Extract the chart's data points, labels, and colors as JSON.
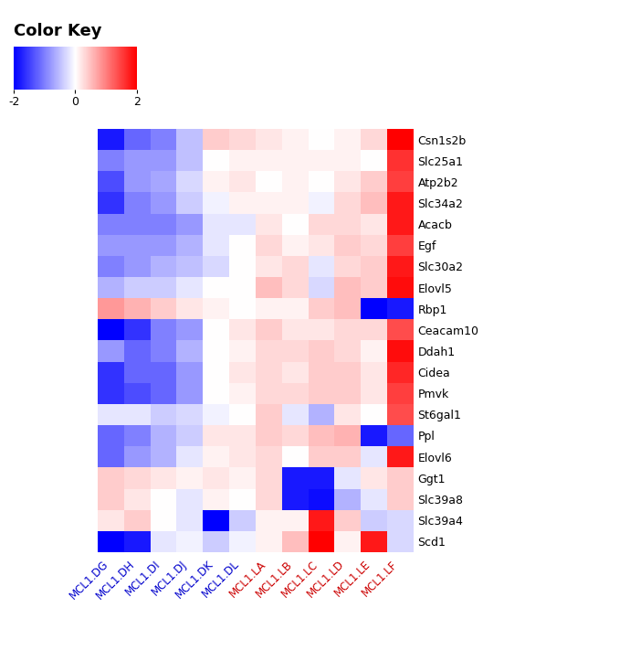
{
  "genes": [
    "Csn1s2b",
    "Slc25a1",
    "Atp2b2",
    "Slc34a2",
    "Acacb",
    "Egf",
    "Slc30a2",
    "Elovl5",
    "Rbp1",
    "Ceacam10",
    "Ddah1",
    "Cidea",
    "Pmvk",
    "St6gal1",
    "Ppl",
    "Elovl6",
    "Ggt1",
    "Slc39a8",
    "Slc39a4",
    "Scd1"
  ],
  "samples": [
    "MCL1.DG",
    "MCL1.DH",
    "MCL1.DI",
    "MCL1.DJ",
    "MCL1.DK",
    "MCL1.DL",
    "MCL1.LA",
    "MCL1.LB",
    "MCL1.LC",
    "MCL1.LD",
    "MCL1.LE",
    "MCL1.LF"
  ],
  "matrix": [
    [
      -1.8,
      -1.2,
      -1.0,
      -0.5,
      0.4,
      0.3,
      0.2,
      0.1,
      0.0,
      0.1,
      0.3,
      2.0
    ],
    [
      -1.0,
      -0.8,
      -0.8,
      -0.5,
      0.0,
      0.1,
      0.1,
      0.1,
      0.1,
      0.1,
      0.0,
      1.6
    ],
    [
      -1.4,
      -0.8,
      -0.7,
      -0.3,
      0.1,
      0.2,
      0.0,
      0.1,
      0.0,
      0.2,
      0.4,
      1.5
    ],
    [
      -1.6,
      -1.0,
      -0.8,
      -0.4,
      -0.1,
      0.1,
      0.1,
      0.1,
      -0.1,
      0.3,
      0.5,
      1.8
    ],
    [
      -1.0,
      -1.0,
      -1.0,
      -0.8,
      -0.2,
      -0.2,
      0.2,
      0.0,
      0.3,
      0.3,
      0.2,
      1.8
    ],
    [
      -0.8,
      -0.8,
      -0.8,
      -0.6,
      -0.2,
      0.0,
      0.3,
      0.1,
      0.2,
      0.4,
      0.3,
      1.5
    ],
    [
      -1.0,
      -0.8,
      -0.6,
      -0.5,
      -0.3,
      0.0,
      0.2,
      0.3,
      -0.2,
      0.3,
      0.4,
      1.8
    ],
    [
      -0.6,
      -0.4,
      -0.4,
      -0.2,
      0.0,
      0.0,
      0.5,
      0.3,
      -0.3,
      0.5,
      0.4,
      1.9
    ],
    [
      0.8,
      0.6,
      0.4,
      0.2,
      0.1,
      0.0,
      0.1,
      0.1,
      0.4,
      0.5,
      -2.0,
      -1.8
    ],
    [
      -2.0,
      -1.6,
      -1.0,
      -0.8,
      0.0,
      0.2,
      0.4,
      0.2,
      0.2,
      0.3,
      0.3,
      1.4
    ],
    [
      -0.8,
      -1.2,
      -1.0,
      -0.6,
      0.0,
      0.1,
      0.3,
      0.3,
      0.4,
      0.3,
      0.1,
      1.9
    ],
    [
      -1.6,
      -1.2,
      -1.2,
      -0.8,
      0.0,
      0.2,
      0.3,
      0.2,
      0.4,
      0.4,
      0.2,
      1.7
    ],
    [
      -1.6,
      -1.4,
      -1.2,
      -0.8,
      0.0,
      0.1,
      0.3,
      0.3,
      0.4,
      0.4,
      0.2,
      1.5
    ],
    [
      -0.2,
      -0.2,
      -0.4,
      -0.3,
      -0.1,
      0.0,
      0.4,
      -0.2,
      -0.6,
      0.2,
      0.0,
      1.4
    ],
    [
      -1.2,
      -1.0,
      -0.6,
      -0.4,
      0.2,
      0.2,
      0.4,
      0.3,
      0.5,
      0.6,
      -1.8,
      -1.2
    ],
    [
      -1.2,
      -0.8,
      -0.6,
      -0.2,
      0.1,
      0.2,
      0.3,
      0.0,
      0.4,
      0.4,
      -0.2,
      1.8
    ],
    [
      0.4,
      0.3,
      0.2,
      0.1,
      0.2,
      0.1,
      0.3,
      -1.8,
      -1.8,
      -0.2,
      0.2,
      0.4
    ],
    [
      0.4,
      0.2,
      0.0,
      -0.2,
      0.1,
      0.0,
      0.3,
      -1.8,
      -1.9,
      -0.6,
      -0.2,
      0.4
    ],
    [
      0.2,
      0.4,
      0.0,
      -0.2,
      -2.0,
      -0.4,
      0.1,
      0.1,
      1.8,
      0.4,
      -0.4,
      -0.3
    ],
    [
      -2.0,
      -1.8,
      -0.2,
      -0.1,
      -0.4,
      -0.1,
      0.1,
      0.5,
      2.0,
      0.1,
      1.8,
      -0.3
    ]
  ],
  "vmin": -2,
  "vmax": 2,
  "colorkey_title": "Color Key",
  "sample_label_color_left": "#0000CC",
  "sample_label_color_right": "#CC0000",
  "colorkey_ticks": [
    -2,
    0,
    2
  ],
  "colorkey_ticklabels": [
    "-2",
    "0",
    "2"
  ],
  "title_fontsize": 13,
  "label_fontsize": 8.5,
  "gene_fontsize": 9,
  "colorkey_fontsize": 9
}
